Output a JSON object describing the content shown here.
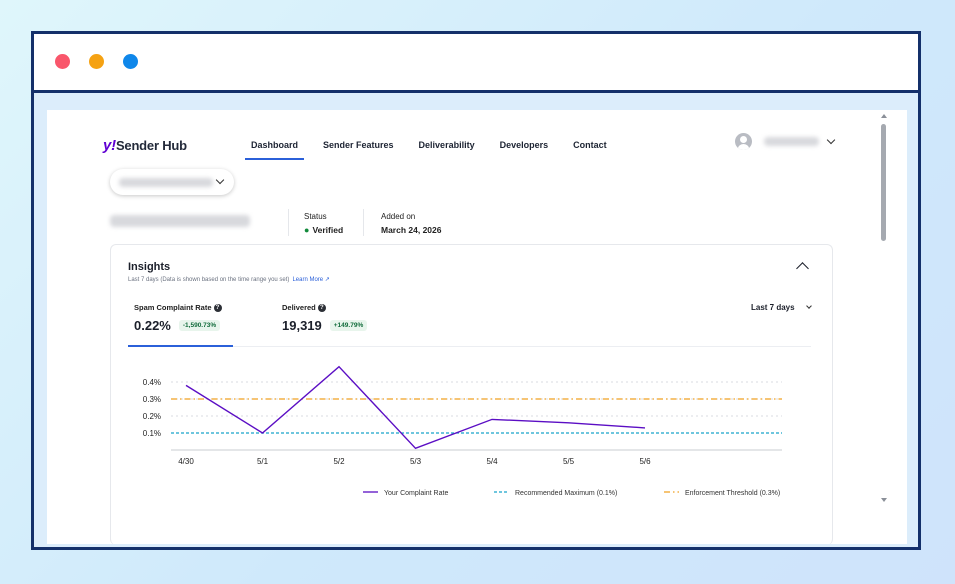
{
  "window": {
    "controls": [
      "close",
      "minimize",
      "maximize"
    ]
  },
  "header": {
    "logo_mark": "y!",
    "logo_text": "Sender Hub",
    "nav": [
      {
        "label": "Dashboard",
        "active": true
      },
      {
        "label": "Sender Features",
        "active": false
      },
      {
        "label": "Deliverability",
        "active": false
      },
      {
        "label": "Developers",
        "active": false
      },
      {
        "label": "Contact",
        "active": false
      }
    ],
    "user_icon": "user-avatar-icon"
  },
  "account": {
    "status_label": "Status",
    "status_value": "Verified",
    "status_color": "#128a3b",
    "added_label": "Added on",
    "added_value": "March 24, 2026"
  },
  "insights": {
    "title": "Insights",
    "subtitle": "Last 7 days (Data is shown based on the time range you set)",
    "learn_more": "Learn More",
    "range": "Last 7 days",
    "metrics": [
      {
        "label": "Spam Complaint Rate",
        "value": "0.22%",
        "change": "-1,590.73%",
        "active": true
      },
      {
        "label": "Delivered",
        "value": "19,319",
        "change": "+149.79%",
        "active": false
      }
    ]
  },
  "chart_data": {
    "type": "line",
    "categories": [
      "4/30",
      "5/1",
      "5/2",
      "5/3",
      "5/4",
      "5/5",
      "5/6"
    ],
    "series": [
      {
        "name": "Your Complaint Rate",
        "values": [
          0.38,
          0.1,
          0.49,
          0.01,
          0.18,
          0.16,
          0.13
        ],
        "color": "#5b0ec4"
      }
    ],
    "thresholds": [
      {
        "name": "Recommended Maximum (0.1%)",
        "value": 0.1,
        "color": "#17a5c9"
      },
      {
        "name": "Enforcement Threshold (0.3%)",
        "value": 0.3,
        "color": "#f0a020"
      }
    ],
    "yticks": [
      "0.4%",
      "0.3%",
      "0.2%",
      "0.1%"
    ],
    "ylim": [
      0,
      0.5
    ],
    "grid": true,
    "legend_position": "bottom"
  }
}
